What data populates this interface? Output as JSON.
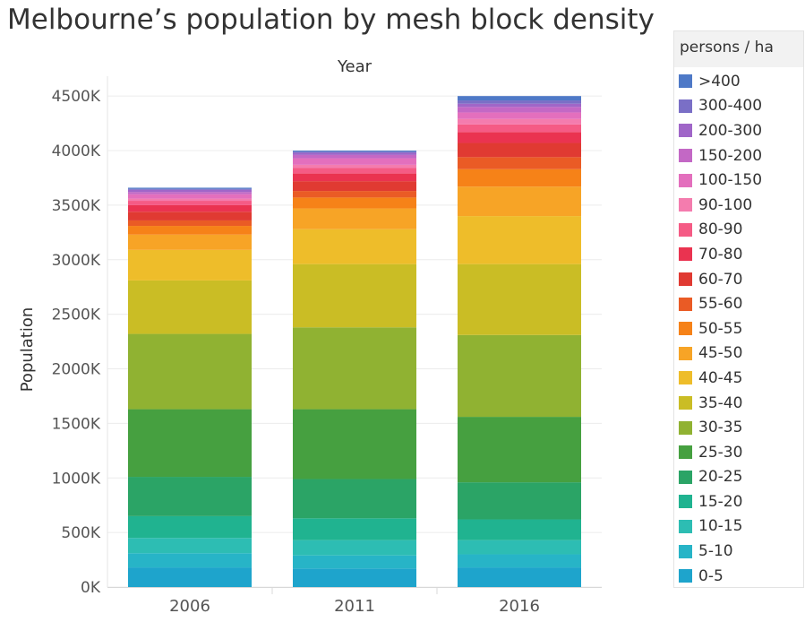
{
  "title": "Melbourne’s population by mesh block density",
  "legend": {
    "title": "persons / ha",
    "items": [
      {
        "label": ">400",
        "color": "#4e79c7"
      },
      {
        "label": "300-400",
        "color": "#7a6fc6"
      },
      {
        "label": "200-300",
        "color": "#a066c8"
      },
      {
        "label": "150-200",
        "color": "#c368c5"
      },
      {
        "label": "100-150",
        "color": "#e36fbd"
      },
      {
        "label": "90-100",
        "color": "#f47cae"
      },
      {
        "label": "80-90",
        "color": "#f55b85"
      },
      {
        "label": "70-80",
        "color": "#ea3350"
      },
      {
        "label": "60-70",
        "color": "#e03a32"
      },
      {
        "label": "55-60",
        "color": "#ea5b25"
      },
      {
        "label": "50-55",
        "color": "#f68218"
      },
      {
        "label": "45-50",
        "color": "#f7a426"
      },
      {
        "label": "40-45",
        "color": "#eebd2a"
      },
      {
        "label": "35-40",
        "color": "#cabd25"
      },
      {
        "label": "30-35",
        "color": "#90b232"
      },
      {
        "label": "25-30",
        "color": "#46a040"
      },
      {
        "label": "20-25",
        "color": "#2ba466"
      },
      {
        "label": "15-20",
        "color": "#20b390"
      },
      {
        "label": "10-15",
        "color": "#2dbdb3"
      },
      {
        "label": "5-10",
        "color": "#27b4c7"
      },
      {
        "label": "0-5",
        "color": "#1ea4cc"
      }
    ]
  },
  "chart_data": {
    "type": "bar",
    "stacked": true,
    "title": "Melbourne’s population by mesh block density",
    "xlabel": "Year",
    "ylabel": "Population",
    "ylim": [
      0,
      4600000
    ],
    "yticks": [
      0,
      500000,
      1000000,
      1500000,
      2000000,
      2500000,
      3000000,
      3500000,
      4000000,
      4500000
    ],
    "ytick_labels": [
      "0K",
      "500K",
      "1000K",
      "1500K",
      "2000K",
      "2500K",
      "3000K",
      "3500K",
      "4000K",
      "4500K"
    ],
    "categories": [
      "2006",
      "2011",
      "2016"
    ],
    "series": [
      {
        "name": "0-5",
        "values": [
          180000,
          170000,
          180000
        ]
      },
      {
        "name": "5-10",
        "values": [
          130000,
          120000,
          120000
        ]
      },
      {
        "name": "10-15",
        "values": [
          140000,
          140000,
          130000
        ]
      },
      {
        "name": "15-20",
        "values": [
          200000,
          200000,
          190000
        ]
      },
      {
        "name": "20-25",
        "values": [
          360000,
          360000,
          340000
        ]
      },
      {
        "name": "25-30",
        "values": [
          620000,
          640000,
          600000
        ]
      },
      {
        "name": "30-35",
        "values": [
          690000,
          750000,
          750000
        ]
      },
      {
        "name": "35-40",
        "values": [
          490000,
          580000,
          650000
        ]
      },
      {
        "name": "40-45",
        "values": [
          280000,
          320000,
          440000
        ]
      },
      {
        "name": "45-50",
        "values": [
          140000,
          190000,
          270000
        ]
      },
      {
        "name": "50-55",
        "values": [
          80000,
          100000,
          160000
        ]
      },
      {
        "name": "55-60",
        "values": [
          50000,
          60000,
          110000
        ]
      },
      {
        "name": "60-70",
        "values": [
          80000,
          90000,
          130000
        ]
      },
      {
        "name": "70-80",
        "values": [
          60000,
          70000,
          100000
        ]
      },
      {
        "name": "80-90",
        "values": [
          40000,
          50000,
          70000
        ]
      },
      {
        "name": "90-100",
        "values": [
          20000,
          30000,
          50000
        ]
      },
      {
        "name": "100-150",
        "values": [
          40000,
          60000,
          60000
        ]
      },
      {
        "name": "150-200",
        "values": [
          20000,
          30000,
          50000
        ]
      },
      {
        "name": "200-300",
        "values": [
          20000,
          20000,
          30000
        ]
      },
      {
        "name": "300-400",
        "values": [
          10000,
          10000,
          30000
        ]
      },
      {
        "name": ">400",
        "values": [
          10000,
          10000,
          40000
        ]
      }
    ],
    "grid": {
      "horizontal": true,
      "vertical": false
    },
    "legend_position": "right"
  }
}
